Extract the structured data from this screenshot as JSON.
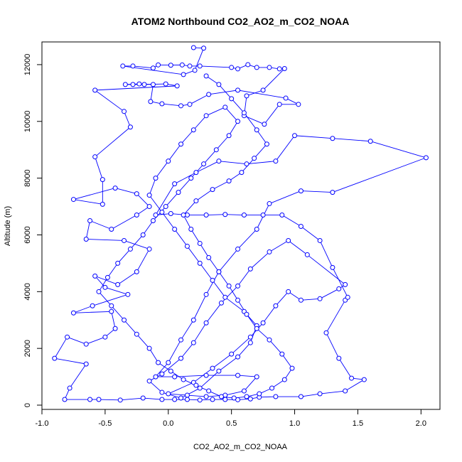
{
  "chart_data": {
    "type": "scatter",
    "title": "ATOM2 Northbound CO2_AO2_m_CO2_NOAA",
    "xlabel": "CO2_AO2_m_CO2_NOAA",
    "ylabel": "Altitude (m)",
    "xlim": [
      -1.0,
      2.15
    ],
    "ylim": [
      -150,
      12800
    ],
    "xticks": [
      -1.0,
      -0.5,
      0.0,
      0.5,
      1.0,
      1.5,
      2.0
    ],
    "xtick_labels": [
      "-1.0",
      "-0.5",
      "0.0",
      "0.5",
      "1.0",
      "1.5",
      "2.0"
    ],
    "yticks": [
      0,
      2000,
      4000,
      6000,
      8000,
      10000,
      12000
    ],
    "ytick_labels": [
      "0",
      "2000",
      "4000",
      "6000",
      "8000",
      "10000",
      "12000"
    ],
    "grid": false,
    "series_color": "#0000ff",
    "series": [
      {
        "style": "points connected by lines",
        "points": [
          [
            0.2,
            12600
          ],
          [
            0.28,
            12580
          ],
          [
            0.21,
            11800
          ],
          [
            0.12,
            11650
          ],
          [
            -0.36,
            11950
          ],
          [
            -0.28,
            11950
          ],
          [
            -0.12,
            11880
          ],
          [
            -0.08,
            11990
          ],
          [
            0.02,
            11980
          ],
          [
            0.11,
            11990
          ],
          [
            0.17,
            11950
          ],
          [
            0.25,
            11950
          ],
          [
            0.5,
            11900
          ],
          [
            0.55,
            11850
          ],
          [
            0.63,
            12000
          ],
          [
            0.7,
            11900
          ],
          [
            0.8,
            11900
          ],
          [
            0.88,
            11850
          ],
          [
            0.92,
            11860
          ],
          [
            0.75,
            11100
          ],
          [
            0.62,
            10900
          ],
          [
            0.6,
            10200
          ],
          [
            0.76,
            9900
          ],
          [
            0.88,
            10600
          ],
          [
            1.03,
            10600
          ],
          [
            0.93,
            10820
          ],
          [
            0.55,
            11100
          ],
          [
            0.32,
            10950
          ],
          [
            0.17,
            10600
          ],
          [
            0.1,
            10550
          ],
          [
            -0.05,
            10620
          ],
          [
            -0.14,
            10700
          ],
          [
            -0.12,
            11300
          ],
          [
            -0.23,
            11320
          ],
          [
            -0.34,
            11300
          ],
          [
            -0.28,
            11300
          ],
          [
            -0.19,
            11300
          ],
          [
            -0.02,
            11320
          ],
          [
            0.07,
            11250
          ],
          [
            -0.58,
            11100
          ],
          [
            -0.35,
            10350
          ],
          [
            -0.3,
            9800
          ],
          [
            -0.58,
            8750
          ],
          [
            -0.52,
            7950
          ],
          [
            -0.52,
            7080
          ],
          [
            -0.75,
            7250
          ],
          [
            -0.42,
            7650
          ],
          [
            -0.25,
            7450
          ],
          [
            -0.15,
            7000
          ],
          [
            -0.25,
            6700
          ],
          [
            -0.45,
            6200
          ],
          [
            -0.62,
            6500
          ],
          [
            -0.65,
            5850
          ],
          [
            -0.35,
            5800
          ],
          [
            -0.15,
            5500
          ],
          [
            -0.25,
            4700
          ],
          [
            -0.4,
            4250
          ],
          [
            -0.58,
            4550
          ],
          [
            -0.5,
            4150
          ],
          [
            -0.32,
            3900
          ],
          [
            -0.6,
            3500
          ],
          [
            -0.75,
            3250
          ],
          [
            -0.45,
            3300
          ],
          [
            -0.42,
            2700
          ],
          [
            -0.5,
            2400
          ],
          [
            -0.65,
            2150
          ],
          [
            -0.8,
            2400
          ],
          [
            -0.9,
            1650
          ],
          [
            -0.65,
            1450
          ],
          [
            -0.78,
            600
          ],
          [
            -0.82,
            200
          ],
          [
            -0.62,
            200
          ],
          [
            -0.55,
            200
          ],
          [
            -0.38,
            180
          ],
          [
            -0.2,
            250
          ],
          [
            -0.05,
            200
          ],
          [
            0.05,
            200
          ],
          [
            0.15,
            200
          ],
          [
            0.25,
            180
          ],
          [
            0.35,
            200
          ],
          [
            0.45,
            200
          ],
          [
            0.55,
            190
          ],
          [
            0.65,
            220
          ],
          [
            0.72,
            280
          ],
          [
            0.85,
            300
          ],
          [
            1.05,
            300
          ],
          [
            1.2,
            400
          ],
          [
            1.4,
            500
          ],
          [
            1.55,
            900
          ],
          [
            1.45,
            950
          ],
          [
            1.35,
            1650
          ],
          [
            1.25,
            2550
          ],
          [
            1.4,
            3700
          ],
          [
            1.42,
            3800
          ],
          [
            1.3,
            4850
          ],
          [
            1.2,
            5800
          ],
          [
            1.05,
            6300
          ],
          [
            0.9,
            6700
          ],
          [
            0.75,
            6700
          ],
          [
            0.6,
            6700
          ],
          [
            0.45,
            6720
          ],
          [
            0.3,
            6700
          ],
          [
            0.15,
            6700
          ],
          [
            0.02,
            6750
          ],
          [
            -0.1,
            6700
          ],
          [
            0.05,
            7800
          ],
          [
            0.22,
            8200
          ],
          [
            0.4,
            8600
          ],
          [
            0.62,
            8500
          ],
          [
            0.85,
            8600
          ],
          [
            1.0,
            9500
          ],
          [
            1.3,
            9400
          ],
          [
            1.6,
            9300
          ],
          [
            2.04,
            8720
          ],
          [
            1.3,
            7500
          ],
          [
            1.05,
            7550
          ],
          [
            0.8,
            7100
          ],
          [
            0.7,
            6200
          ],
          [
            0.55,
            5500
          ],
          [
            0.4,
            4700
          ],
          [
            0.3,
            3900
          ],
          [
            0.2,
            3000
          ],
          [
            0.1,
            2300
          ],
          [
            0.0,
            1500
          ],
          [
            -0.1,
            1000
          ],
          [
            0.05,
            1000
          ],
          [
            0.3,
            1050
          ],
          [
            0.55,
            1050
          ],
          [
            0.7,
            1000
          ],
          [
            0.6,
            500
          ],
          [
            0.45,
            350
          ],
          [
            0.3,
            300
          ],
          [
            0.15,
            350
          ],
          [
            0.0,
            400
          ],
          [
            0.2,
            800
          ],
          [
            0.35,
            1300
          ],
          [
            0.5,
            1800
          ],
          [
            0.65,
            2400
          ],
          [
            0.75,
            2900
          ],
          [
            0.85,
            3500
          ],
          [
            0.95,
            4000
          ],
          [
            1.05,
            3700
          ],
          [
            1.2,
            3750
          ],
          [
            1.35,
            4100
          ],
          [
            1.4,
            4250
          ],
          [
            1.1,
            5300
          ],
          [
            0.95,
            5800
          ],
          [
            0.8,
            5400
          ],
          [
            0.65,
            4800
          ],
          [
            0.55,
            4200
          ],
          [
            0.42,
            3600
          ],
          [
            0.3,
            2900
          ],
          [
            0.2,
            2200
          ],
          [
            0.1,
            1650
          ],
          [
            -0.05,
            1100
          ],
          [
            -0.15,
            850
          ],
          [
            -0.05,
            450
          ],
          [
            0.1,
            250
          ],
          [
            0.25,
            600
          ],
          [
            0.4,
            1200
          ],
          [
            0.55,
            1700
          ],
          [
            0.65,
            2200
          ],
          [
            0.7,
            2800
          ],
          [
            0.6,
            3300
          ],
          [
            0.45,
            3800
          ],
          [
            0.35,
            4400
          ],
          [
            0.25,
            5000
          ],
          [
            0.15,
            5600
          ],
          [
            0.05,
            6200
          ],
          [
            -0.05,
            6800
          ],
          [
            -0.15,
            7400
          ],
          [
            -0.1,
            8000
          ],
          [
            0.0,
            8600
          ],
          [
            0.1,
            9200
          ],
          [
            0.2,
            9700
          ],
          [
            0.3,
            10200
          ],
          [
            0.45,
            10500
          ],
          [
            0.55,
            10000
          ],
          [
            0.48,
            9500
          ],
          [
            0.38,
            9000
          ],
          [
            0.28,
            8500
          ],
          [
            0.18,
            8000
          ],
          [
            0.08,
            7500
          ],
          [
            -0.02,
            7000
          ],
          [
            -0.12,
            6500
          ],
          [
            -0.2,
            6000
          ],
          [
            -0.3,
            5500
          ],
          [
            -0.4,
            5000
          ],
          [
            -0.48,
            4500
          ],
          [
            -0.55,
            4000
          ],
          [
            -0.45,
            3500
          ],
          [
            -0.35,
            3000
          ],
          [
            -0.25,
            2500
          ],
          [
            -0.15,
            2000
          ],
          [
            -0.08,
            1500
          ],
          [
            0.02,
            1200
          ],
          [
            0.12,
            900
          ],
          [
            0.22,
            700
          ],
          [
            0.32,
            500
          ],
          [
            0.42,
            300
          ],
          [
            0.52,
            250
          ],
          [
            0.62,
            300
          ],
          [
            0.72,
            400
          ],
          [
            0.82,
            600
          ],
          [
            0.92,
            900
          ],
          [
            0.98,
            1300
          ],
          [
            0.9,
            1800
          ],
          [
            0.8,
            2300
          ],
          [
            0.7,
            2700
          ],
          [
            0.62,
            3200
          ],
          [
            0.55,
            3700
          ],
          [
            0.48,
            4200
          ],
          [
            0.4,
            4700
          ],
          [
            0.32,
            5200
          ],
          [
            0.25,
            5700
          ],
          [
            0.18,
            6200
          ],
          [
            0.12,
            6700
          ],
          [
            0.22,
            7200
          ],
          [
            0.35,
            7600
          ],
          [
            0.48,
            7900
          ],
          [
            0.58,
            8200
          ],
          [
            0.68,
            8700
          ],
          [
            0.78,
            9200
          ],
          [
            0.7,
            9700
          ],
          [
            0.6,
            10300
          ],
          [
            0.5,
            10800
          ],
          [
            0.4,
            11300
          ],
          [
            0.3,
            11600
          ]
        ]
      }
    ]
  }
}
